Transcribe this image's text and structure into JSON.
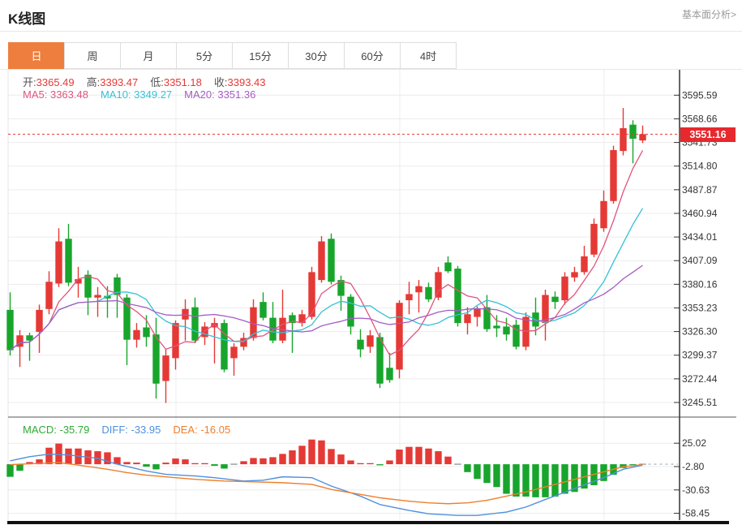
{
  "header": {
    "title": "K线图",
    "link": "基本面分析>"
  },
  "tabs": [
    {
      "label": "日",
      "selected": true
    },
    {
      "label": "周",
      "selected": false
    },
    {
      "label": "月",
      "selected": false
    },
    {
      "label": "5分",
      "selected": false
    },
    {
      "label": "15分",
      "selected": false
    },
    {
      "label": "30分",
      "selected": false
    },
    {
      "label": "60分",
      "selected": false
    },
    {
      "label": "4时",
      "selected": false
    }
  ],
  "legend_ohlc": [
    {
      "label": "开:",
      "value": "3365.49",
      "label_color": "#555555",
      "value_color": "#e53935"
    },
    {
      "label": "高:",
      "value": "3393.47",
      "label_color": "#555555",
      "value_color": "#e53935"
    },
    {
      "label": "低:",
      "value": "3351.18",
      "label_color": "#555555",
      "value_color": "#e53935"
    },
    {
      "label": "收:",
      "value": "3393.43",
      "label_color": "#555555",
      "value_color": "#e53935"
    }
  ],
  "legend_ma": [
    {
      "label": "MA5: ",
      "value": "3363.48",
      "label_color": "#e0557c",
      "value_color": "#e0557c"
    },
    {
      "label": "MA10: ",
      "value": "3349.27",
      "label_color": "#35c1d6",
      "value_color": "#35c1d6"
    },
    {
      "label": "MA20: ",
      "value": "3351.36",
      "label_color": "#a45cc5",
      "value_color": "#a45cc5"
    }
  ],
  "legend_macd": [
    {
      "label": "MACD: ",
      "value": "-35.79",
      "label_color": "#2daa35",
      "value_color": "#2daa35"
    },
    {
      "label": "DIFF: ",
      "value": "-33.95",
      "label_color": "#5090dd",
      "value_color": "#5090dd"
    },
    {
      "label": "DEA: ",
      "value": "-16.05",
      "label_color": "#ee7f2d",
      "value_color": "#ee7f2d"
    }
  ],
  "price_marker": {
    "value": "3551.16"
  },
  "chart_data": {
    "type": "candlestick+macd",
    "price_axis": {
      "max": 3595.59,
      "min": 3245.51,
      "ticks": [
        3595.59,
        3568.66,
        3541.73,
        3514.8,
        3487.87,
        3460.94,
        3434.01,
        3407.09,
        3380.16,
        3353.23,
        3326.3,
        3299.37,
        3272.44,
        3245.51
      ]
    },
    "macd_axis": {
      "ticks": [
        25.02,
        -2.8,
        -30.63,
        -58.45
      ]
    },
    "current_price": 3551.16,
    "ma_periods": [
      5,
      10,
      20
    ],
    "v_gridlines_idx": [
      17,
      40,
      61
    ],
    "candles": [
      [
        3351,
        3371,
        3299,
        3305
      ],
      [
        3309,
        3328,
        3286,
        3322
      ],
      [
        3322,
        3325,
        3293,
        3316
      ],
      [
        3326,
        3357,
        3302,
        3351
      ],
      [
        3352,
        3395,
        3346,
        3383
      ],
      [
        3381,
        3444,
        3377,
        3429
      ],
      [
        3432,
        3449,
        3378,
        3382
      ],
      [
        3381,
        3400,
        3365,
        3386
      ],
      [
        3391,
        3396,
        3345,
        3365
      ],
      [
        3365,
        3377,
        3343,
        3368
      ],
      [
        3367,
        3378,
        3342,
        3364
      ],
      [
        3388,
        3392,
        3342,
        3368
      ],
      [
        3365,
        3369,
        3288,
        3317
      ],
      [
        3317,
        3336,
        3308,
        3328
      ],
      [
        3331,
        3345,
        3309,
        3320
      ],
      [
        3323,
        3342,
        3250,
        3267
      ],
      [
        3270,
        3306,
        3245,
        3299
      ],
      [
        3296,
        3339,
        3283,
        3336
      ],
      [
        3340,
        3363,
        3316,
        3352
      ],
      [
        3354,
        3365,
        3313,
        3316
      ],
      [
        3320,
        3337,
        3311,
        3332
      ],
      [
        3331,
        3342,
        3290,
        3336
      ],
      [
        3336,
        3340,
        3280,
        3283
      ],
      [
        3296,
        3313,
        3276,
        3309
      ],
      [
        3309,
        3325,
        3305,
        3319
      ],
      [
        3319,
        3363,
        3316,
        3354
      ],
      [
        3360,
        3371,
        3339,
        3342
      ],
      [
        3342,
        3360,
        3313,
        3316
      ],
      [
        3316,
        3374,
        3313,
        3342
      ],
      [
        3345,
        3348,
        3302,
        3336
      ],
      [
        3336,
        3351,
        3332,
        3346
      ],
      [
        3343,
        3400,
        3340,
        3394
      ],
      [
        3385,
        3435,
        3382,
        3429
      ],
      [
        3432,
        3438,
        3380,
        3383
      ],
      [
        3385,
        3390,
        3350,
        3367
      ],
      [
        3366,
        3369,
        3323,
        3332
      ],
      [
        3317,
        3329,
        3297,
        3306
      ],
      [
        3309,
        3328,
        3302,
        3322
      ],
      [
        3320,
        3325,
        3262,
        3267
      ],
      [
        3285,
        3302,
        3268,
        3271
      ],
      [
        3283,
        3362,
        3273,
        3359
      ],
      [
        3362,
        3383,
        3346,
        3369
      ],
      [
        3371,
        3385,
        3348,
        3378
      ],
      [
        3377,
        3382,
        3360,
        3363
      ],
      [
        3365,
        3400,
        3362,
        3394
      ],
      [
        3405,
        3412,
        3393,
        3395
      ],
      [
        3398,
        3401,
        3332,
        3336
      ],
      [
        3336,
        3354,
        3323,
        3346
      ],
      [
        3343,
        3355,
        3332,
        3352
      ],
      [
        3354,
        3368,
        3326,
        3329
      ],
      [
        3333,
        3345,
        3320,
        3330
      ],
      [
        3332,
        3342,
        3316,
        3323
      ],
      [
        3334,
        3340,
        3306,
        3309
      ],
      [
        3309,
        3348,
        3305,
        3343
      ],
      [
        3348,
        3365,
        3322,
        3332
      ],
      [
        3336,
        3374,
        3316,
        3368
      ],
      [
        3366,
        3372,
        3352,
        3360
      ],
      [
        3362,
        3394,
        3357,
        3389
      ],
      [
        3388,
        3400,
        3383,
        3394
      ],
      [
        3394,
        3424,
        3391,
        3412
      ],
      [
        3414,
        3455,
        3411,
        3449
      ],
      [
        3444,
        3487,
        3440,
        3475
      ],
      [
        3475,
        3538,
        3472,
        3533
      ],
      [
        3532,
        3581,
        3527,
        3558
      ],
      [
        3562,
        3567,
        3518,
        3546
      ],
      [
        3544,
        3561,
        3541,
        3551.16
      ]
    ],
    "macd_hist": [
      -15,
      -7.8,
      2.6,
      5.8,
      19.7,
      24.6,
      18.7,
      18.7,
      16.5,
      15.5,
      14.2,
      8.4,
      2.6,
      1.9,
      -2.9,
      -6.1,
      1.9,
      6.8,
      5.8,
      1.3,
      1.3,
      -1.9,
      -5.2,
      0,
      3.6,
      7.4,
      7,
      8.4,
      12.3,
      16.5,
      22,
      29.4,
      28.4,
      18.1,
      11.6,
      4.5,
      1.3,
      1.3,
      -1.3,
      4.5,
      17.5,
      20.7,
      20.7,
      18.7,
      15.5,
      9.1,
      0,
      -9.4,
      -17.5,
      -22.3,
      -27.2,
      -35.2,
      -38.5,
      -38.5,
      -39.4,
      -39.4,
      -38.5,
      -35.2,
      -33,
      -29,
      -25,
      -20,
      -12.6,
      -4.5,
      -1,
      0
    ],
    "diff_line": [
      [
        0,
        4
      ],
      [
        2,
        9
      ],
      [
        4,
        12
      ],
      [
        6,
        11
      ],
      [
        9,
        7
      ],
      [
        11,
        0
      ],
      [
        14,
        -8
      ],
      [
        16,
        -12
      ],
      [
        19,
        -14
      ],
      [
        21,
        -16
      ],
      [
        24,
        -20
      ],
      [
        26,
        -19
      ],
      [
        28,
        -15
      ],
      [
        31,
        -16
      ],
      [
        33,
        -26
      ],
      [
        36,
        -38
      ],
      [
        38,
        -48
      ],
      [
        41,
        -55
      ],
      [
        43,
        -59
      ],
      [
        46,
        -61
      ],
      [
        48,
        -61
      ],
      [
        51,
        -57
      ],
      [
        53,
        -51
      ],
      [
        55,
        -42
      ],
      [
        58,
        -29
      ],
      [
        61,
        -16
      ],
      [
        63,
        -6
      ],
      [
        65,
        -1
      ]
    ],
    "dea_line": [
      [
        0,
        -0.5
      ],
      [
        2,
        0.5
      ],
      [
        5,
        2
      ],
      [
        7,
        -1
      ],
      [
        10,
        -6
      ],
      [
        12,
        -10
      ],
      [
        14,
        -13
      ],
      [
        17,
        -16
      ],
      [
        19,
        -18
      ],
      [
        22,
        -20
      ],
      [
        25,
        -21
      ],
      [
        28,
        -22
      ],
      [
        31,
        -24
      ],
      [
        33,
        -30
      ],
      [
        36,
        -36
      ],
      [
        38,
        -40
      ],
      [
        41,
        -44
      ],
      [
        43,
        -46
      ],
      [
        45,
        -47
      ],
      [
        47,
        -46
      ],
      [
        49,
        -43
      ],
      [
        51,
        -38
      ],
      [
        53,
        -33
      ],
      [
        55,
        -27
      ],
      [
        57,
        -21
      ],
      [
        59,
        -15
      ],
      [
        61,
        -9
      ],
      [
        63,
        -3
      ],
      [
        65,
        -0.5
      ]
    ],
    "colors": {
      "up": "#e53935",
      "down": "#18a52c",
      "ma5": "#e0557c",
      "ma10": "#35c1d6",
      "ma20": "#a45cc5",
      "diff": "#5090dd",
      "dea": "#ee7f2d",
      "grid": "#ececec",
      "axis": "#333333",
      "price_dash": "#e53935",
      "neutral_dash": "#aebfc7",
      "tab_accent": "#ee7e3e",
      "badge": "#e7282d"
    }
  }
}
